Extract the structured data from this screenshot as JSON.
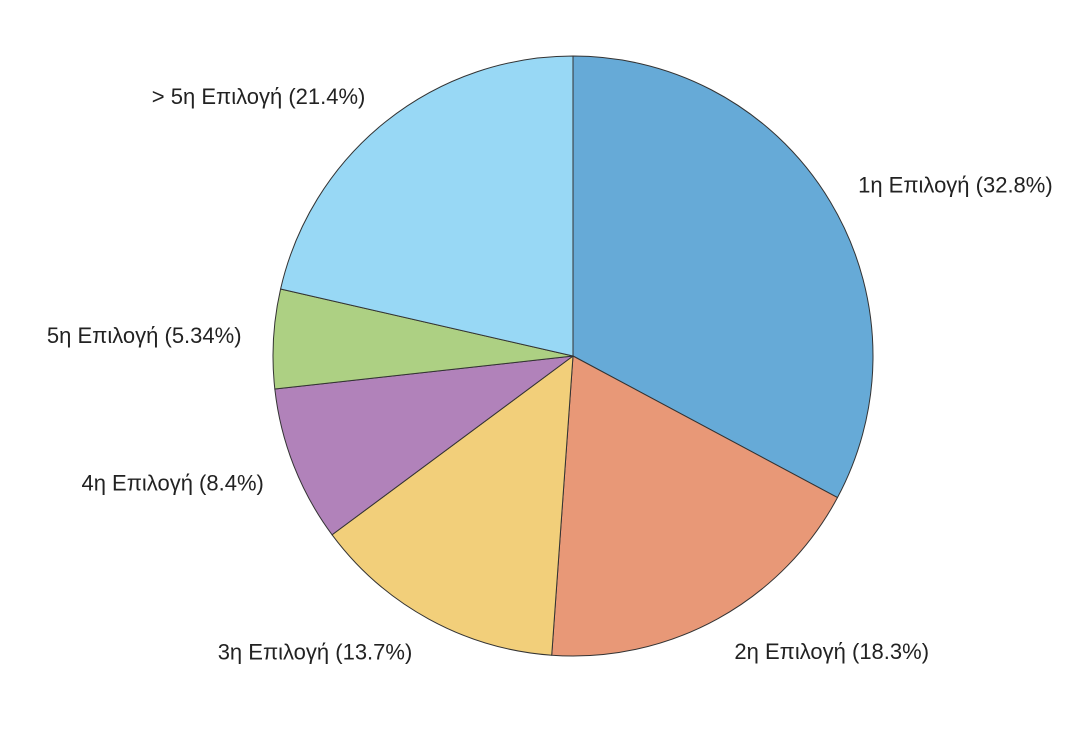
{
  "chart_data": {
    "type": "pie",
    "title": "",
    "start_angle": "12 o'clock",
    "direction": "clockwise",
    "slices": [
      {
        "label": "1η Επιλογή (32.8%)",
        "value": 32.8,
        "color": "#66aad7"
      },
      {
        "label": "2η Επιλογή (18.3%)",
        "value": 18.3,
        "color": "#e89877"
      },
      {
        "label": "3η Επιλογή (13.7%)",
        "value": 13.7,
        "color": "#f2cf7a"
      },
      {
        "label": "4η Επιλογή (8.4%)",
        "value": 8.4,
        "color": "#b182ba"
      },
      {
        "label": "5η Επιλογή (5.34%)",
        "value": 5.34,
        "color": "#add083"
      },
      {
        "label": "> 5η Επιλογή (21.4%)",
        "value": 21.4,
        "color": "#98d8f5"
      }
    ]
  }
}
